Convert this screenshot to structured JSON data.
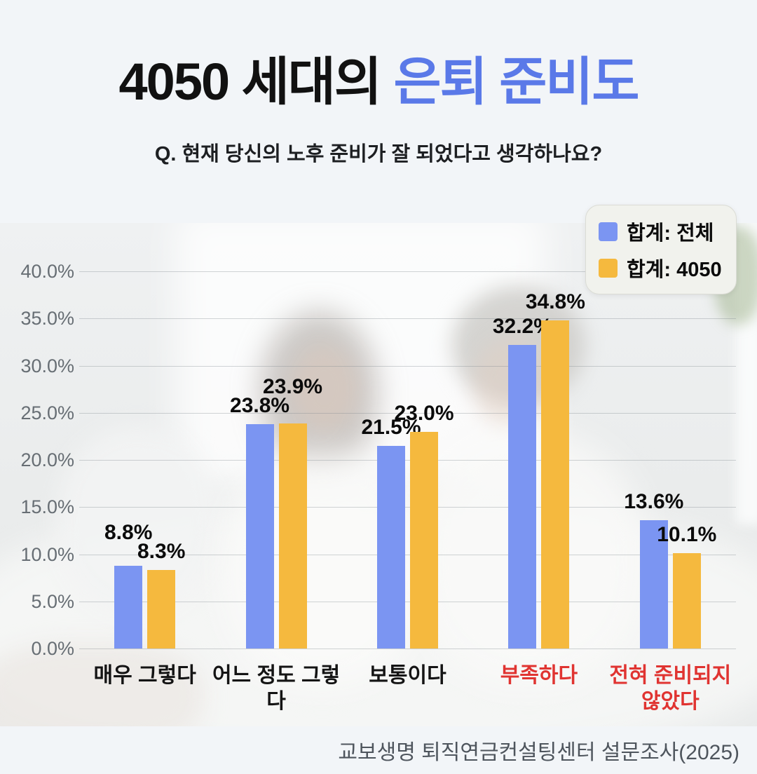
{
  "title": {
    "prefix": "4050 세대의 ",
    "highlight": "은퇴 준비도"
  },
  "subtitle": "Q. 현재 당신의 노후 준비가 잘 되었다고 생각하나요?",
  "footer": "교보생명 퇴직연금컨설팅센터 설문조사(2025)",
  "colors": {
    "title_highlight": "#5A79E8",
    "series_total": "#7B95F2",
    "series_4050": "#F5B93E",
    "category_alert": "#E03431",
    "axis_label": "#676E74",
    "grid_line": "rgba(125,135,140,0.35)",
    "footer_text": "#4E555D"
  },
  "legend": {
    "items": [
      {
        "label": "합계: 전체",
        "color": "#7B95F2"
      },
      {
        "label": "합계: 4050",
        "color": "#F5B93E"
      }
    ]
  },
  "chart_data": {
    "type": "bar",
    "title": "4050 세대의 은퇴 준비도",
    "categories": [
      "매우 그렇다",
      "어느 정도 그렇다",
      "보통이다",
      "부족하다",
      "전혀 준비되지 않았다"
    ],
    "category_emphasis": [
      false,
      false,
      false,
      true,
      true
    ],
    "series": [
      {
        "name": "합계: 전체",
        "color": "#7B95F2",
        "values": [
          8.8,
          23.8,
          21.5,
          32.2,
          13.6
        ]
      },
      {
        "name": "합계: 4050",
        "color": "#F5B93E",
        "values": [
          8.3,
          23.9,
          23.0,
          34.8,
          10.1
        ]
      }
    ],
    "value_labels": [
      [
        "8.8%",
        "23.8%",
        "21.5%",
        "32.2%",
        "13.6%"
      ],
      [
        "8.3%",
        "23.9%",
        "23.0%",
        "34.8%",
        "10.1%"
      ]
    ],
    "ylim": [
      0,
      40
    ],
    "ytick_step": 5,
    "ytick_labels": [
      "0.0%",
      "5.0%",
      "10.0%",
      "15.0%",
      "20.0%",
      "25.0%",
      "30.0%",
      "35.0%",
      "40.0%"
    ],
    "grid": true,
    "legend_position": "top-right"
  }
}
